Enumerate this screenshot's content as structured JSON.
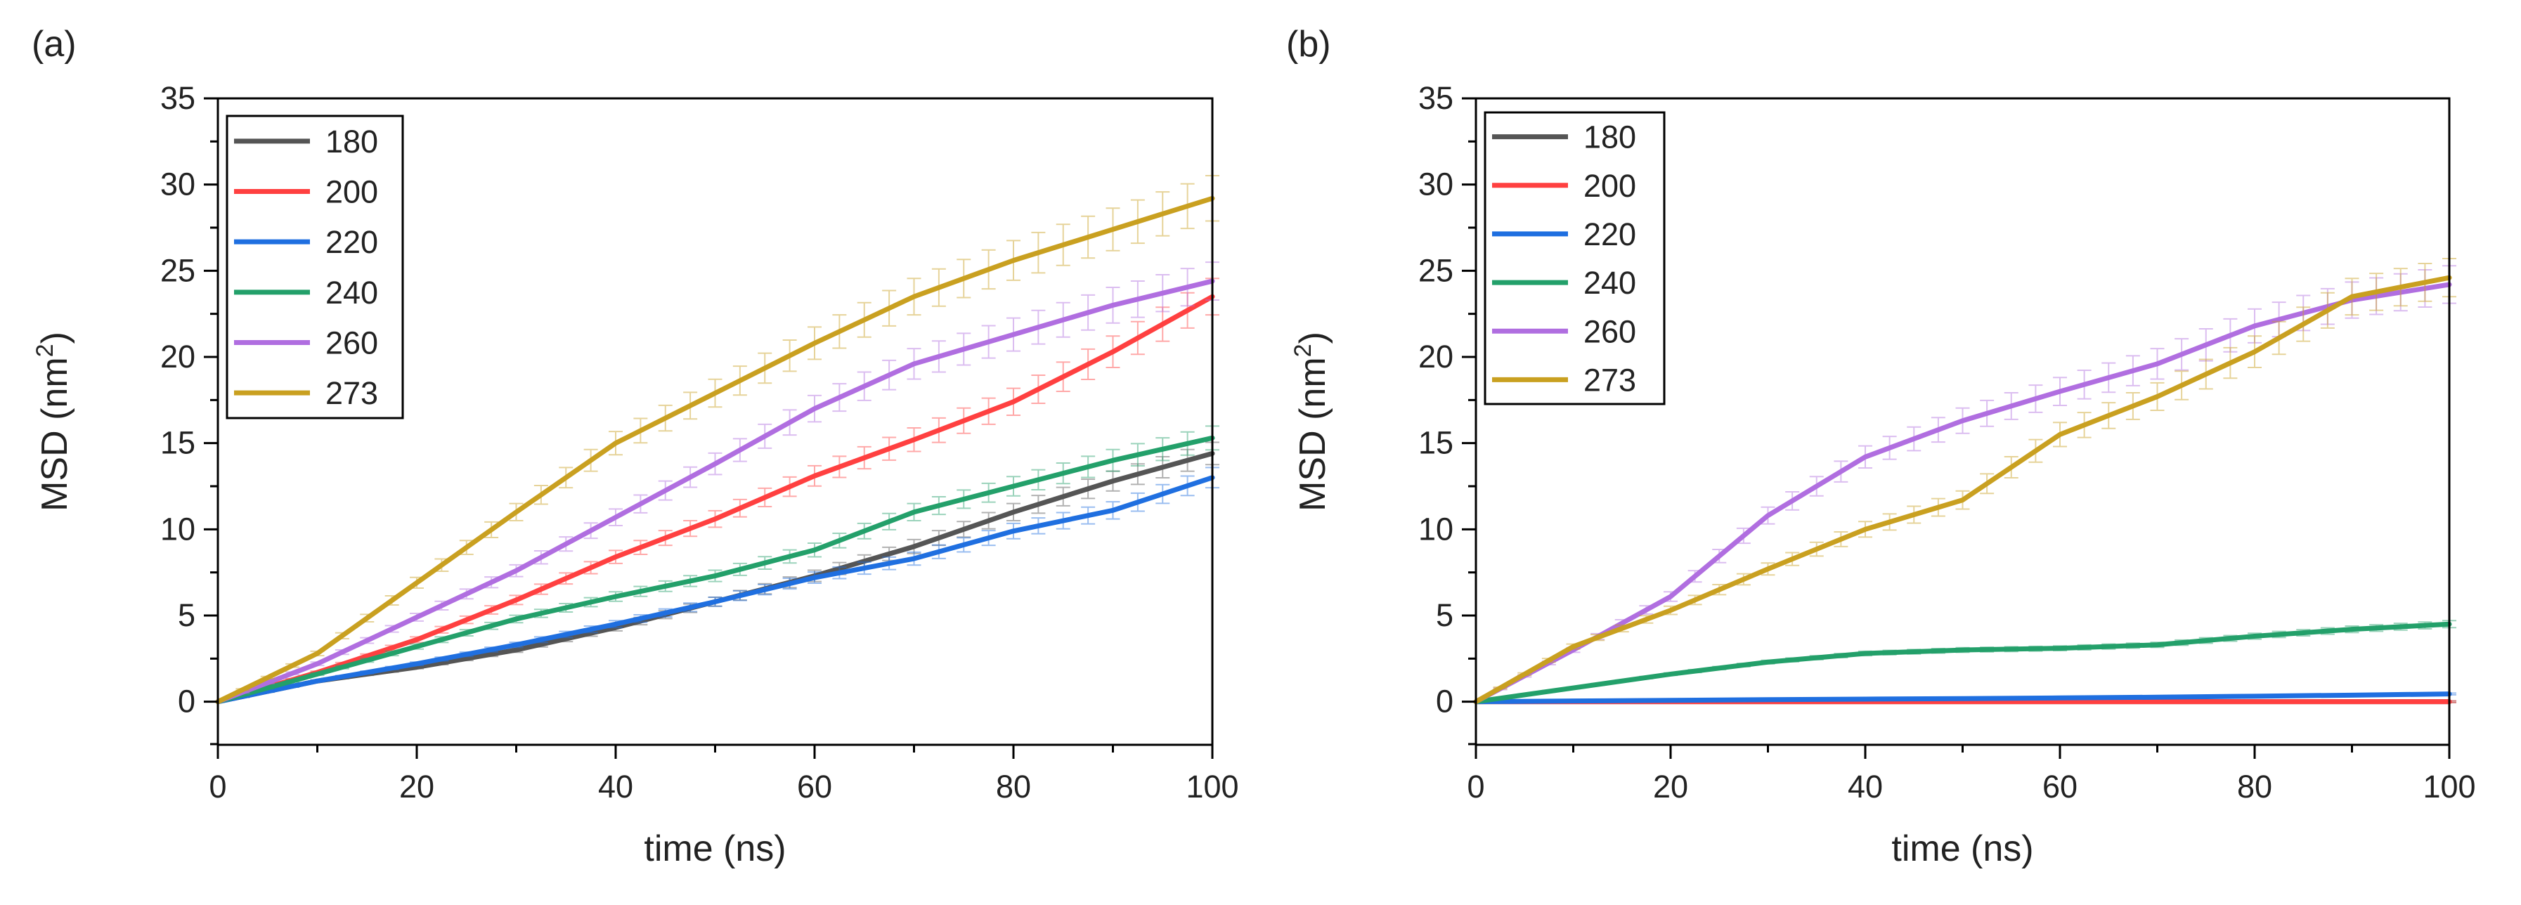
{
  "chart_data": [
    {
      "type": "line",
      "panel_label": "(a)",
      "title": "",
      "xlabel": "time (ns)",
      "ylabel_main": "MSD (nm",
      "ylabel_sup": "2",
      "ylabel_close": ")",
      "xlim": [
        0,
        100
      ],
      "ylim": [
        -2.5,
        35
      ],
      "xticks": [
        0,
        20,
        40,
        60,
        80,
        100
      ],
      "yticks": [
        0,
        5,
        10,
        15,
        20,
        25,
        30,
        35
      ],
      "legend_position": "top-left",
      "error_bars": true,
      "x": [
        0,
        10,
        20,
        30,
        40,
        50,
        60,
        70,
        80,
        90,
        100
      ],
      "series": [
        {
          "name": "180",
          "color": "#555555",
          "values": [
            0,
            1.2,
            2.0,
            3.0,
            4.3,
            5.8,
            7.3,
            9.0,
            11.0,
            12.8,
            14.4
          ]
        },
        {
          "name": "200",
          "color": "#ff4040",
          "values": [
            0,
            1.7,
            3.6,
            5.9,
            8.4,
            10.6,
            13.1,
            15.2,
            17.4,
            20.3,
            23.5
          ]
        },
        {
          "name": "220",
          "color": "#1f6fe0",
          "values": [
            0,
            1.2,
            2.2,
            3.3,
            4.5,
            5.8,
            7.2,
            8.3,
            9.9,
            11.1,
            13.0
          ]
        },
        {
          "name": "240",
          "color": "#23a06a",
          "values": [
            0,
            1.6,
            3.2,
            4.8,
            6.1,
            7.3,
            8.8,
            11.0,
            12.5,
            14.0,
            15.3
          ]
        },
        {
          "name": "260",
          "color": "#b06ee0",
          "values": [
            0,
            2.2,
            4.9,
            7.6,
            10.7,
            13.8,
            17.0,
            19.6,
            21.3,
            23.0,
            24.4
          ]
        },
        {
          "name": "273",
          "color": "#c9a020",
          "values": [
            0,
            2.8,
            6.9,
            11.0,
            15.0,
            17.9,
            20.8,
            23.5,
            25.6,
            27.4,
            29.2
          ]
        }
      ]
    },
    {
      "type": "line",
      "panel_label": "(b)",
      "title": "",
      "xlabel": "time (ns)",
      "ylabel_main": "MSD (nm",
      "ylabel_sup": "2",
      "ylabel_close": ")",
      "xlim": [
        0,
        100
      ],
      "ylim": [
        -2.5,
        35
      ],
      "xticks": [
        0,
        20,
        40,
        60,
        80,
        100
      ],
      "yticks": [
        0,
        5,
        10,
        15,
        20,
        25,
        30,
        35
      ],
      "legend_position": "top-left",
      "error_bars": true,
      "x": [
        0,
        10,
        20,
        30,
        40,
        50,
        60,
        70,
        80,
        90,
        100
      ],
      "series": [
        {
          "name": "180",
          "color": "#555555",
          "values": [
            0,
            0,
            0,
            0,
            0,
            0,
            0,
            0,
            0,
            0,
            0
          ]
        },
        {
          "name": "200",
          "color": "#ff4040",
          "values": [
            0,
            0,
            0,
            0,
            0,
            0,
            0,
            0,
            0,
            0,
            0
          ]
        },
        {
          "name": "220",
          "color": "#1f6fe0",
          "values": [
            0,
            0.04,
            0.08,
            0.12,
            0.15,
            0.18,
            0.22,
            0.26,
            0.32,
            0.38,
            0.45
          ]
        },
        {
          "name": "240",
          "color": "#23a06a",
          "values": [
            0,
            0.8,
            1.6,
            2.3,
            2.8,
            3.0,
            3.1,
            3.3,
            3.8,
            4.2,
            4.5
          ]
        },
        {
          "name": "260",
          "color": "#b06ee0",
          "values": [
            0,
            3.0,
            6.1,
            10.8,
            14.2,
            16.3,
            18.0,
            19.6,
            21.8,
            23.3,
            24.2
          ]
        },
        {
          "name": "273",
          "color": "#c9a020",
          "values": [
            0,
            3.2,
            5.3,
            7.7,
            10.0,
            11.7,
            15.5,
            17.7,
            20.3,
            23.5,
            24.6
          ]
        }
      ]
    }
  ]
}
